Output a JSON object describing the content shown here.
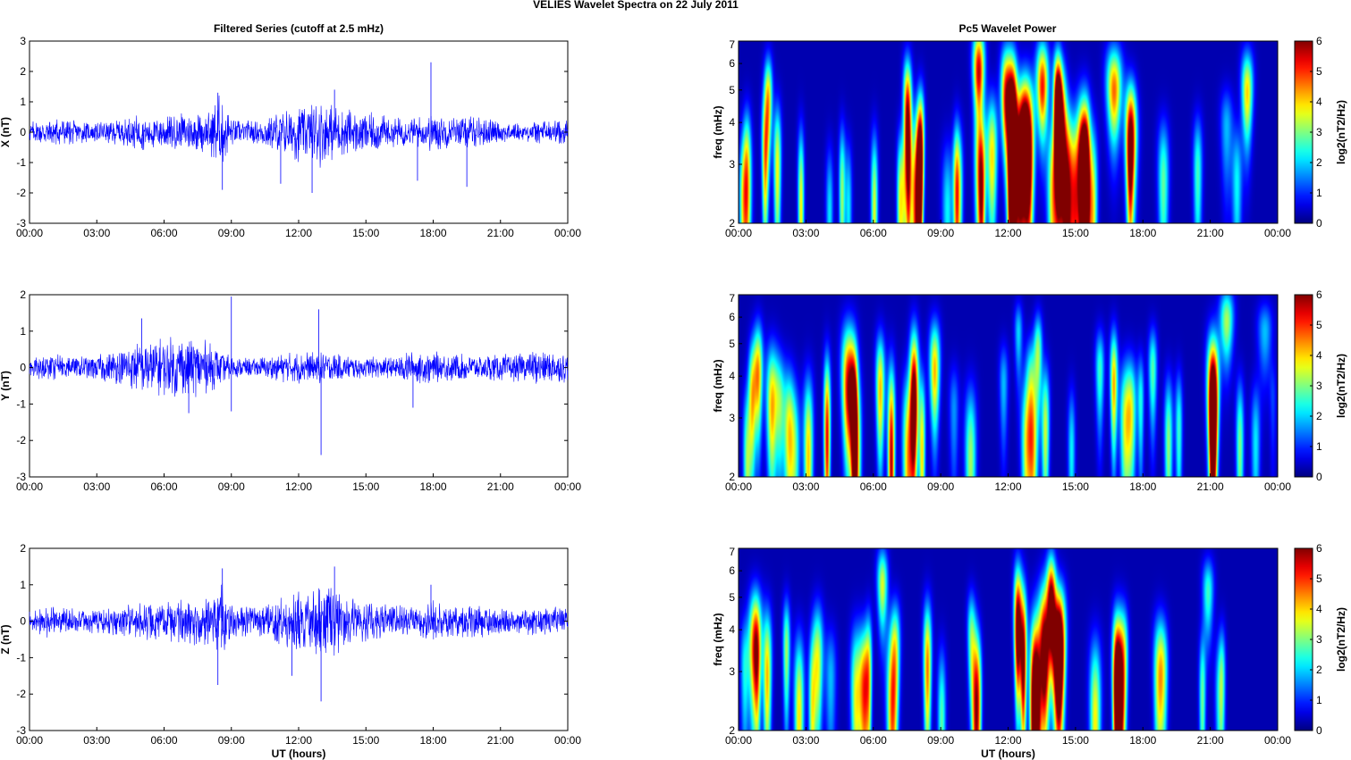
{
  "figure": {
    "title": "VELIES Wavelet Spectra on 22 July     2011",
    "time_left_title": "Filtered Series (cutoff at 2.5 mHz)",
    "spectra_title": "Pc5 Wavelet Power",
    "xlabel": "UT (hours)",
    "freq_label": "freq (mHz)",
    "colorbar_label": "log2(nT2/Hz)"
  },
  "chart_data": [
    {
      "type": "line",
      "component": "X",
      "ylabel": "X (nT)",
      "xlim": [
        0,
        24
      ],
      "ylim": [
        -3,
        3
      ],
      "yticks": [
        "-3",
        "-2",
        "-1",
        "0",
        "1",
        "2",
        "3"
      ],
      "xticks": [
        "00:00",
        "03:00",
        "06:00",
        "09:00",
        "12:00",
        "15:00",
        "18:00",
        "21:00",
        "00:00"
      ],
      "color": "#0000ff",
      "envelope": {
        "t_hours": [
          0,
          1,
          2,
          3,
          4,
          5,
          6,
          7,
          8,
          8.5,
          9,
          10,
          11,
          12,
          12.5,
          13,
          13.5,
          14,
          15,
          16,
          17,
          18,
          19,
          20,
          21,
          22,
          23,
          24
        ],
        "amplitude_nT": [
          0.35,
          0.55,
          0.4,
          0.35,
          0.45,
          0.6,
          0.55,
          0.65,
          0.7,
          1.4,
          0.45,
          0.4,
          0.7,
          1.0,
          0.9,
          1.2,
          1.0,
          0.8,
          0.7,
          0.55,
          0.45,
          0.7,
          0.5,
          0.55,
          0.35,
          0.3,
          0.45,
          0.4
        ]
      },
      "peaks": [
        {
          "t": 8.4,
          "nT": 1.3
        },
        {
          "t": 8.6,
          "nT": -1.9
        },
        {
          "t": 11.2,
          "nT": -1.7
        },
        {
          "t": 12.6,
          "nT": -2.0
        },
        {
          "t": 13.6,
          "nT": 1.4
        },
        {
          "t": 17.3,
          "nT": -1.6
        },
        {
          "t": 17.9,
          "nT": 2.3
        },
        {
          "t": 19.5,
          "nT": -1.8
        }
      ]
    },
    {
      "type": "line",
      "component": "Y",
      "ylabel": "Y (nT)",
      "xlim": [
        0,
        24
      ],
      "ylim": [
        -3,
        2
      ],
      "yticks": [
        "-3",
        "-2",
        "-1",
        "0",
        "1",
        "2"
      ],
      "xticks": [
        "00:00",
        "03:00",
        "06:00",
        "09:00",
        "12:00",
        "15:00",
        "18:00",
        "21:00",
        "00:00"
      ],
      "color": "#0000ff",
      "envelope": {
        "t_hours": [
          0,
          1,
          2,
          3,
          4,
          5,
          6,
          7,
          8,
          9,
          10,
          11,
          12,
          13,
          14,
          15,
          16,
          17,
          18,
          19,
          20,
          21,
          22,
          23,
          24
        ],
        "amplitude_nT": [
          0.25,
          0.4,
          0.3,
          0.35,
          0.5,
          0.75,
          0.85,
          0.9,
          0.75,
          0.3,
          0.25,
          0.4,
          0.45,
          0.45,
          0.35,
          0.3,
          0.3,
          0.45,
          0.45,
          0.4,
          0.35,
          0.4,
          0.4,
          0.55,
          0.4
        ]
      },
      "peaks": [
        {
          "t": 5.0,
          "nT": 1.35
        },
        {
          "t": 7.1,
          "nT": -1.25
        },
        {
          "t": 9.0,
          "nT": 1.95
        },
        {
          "t": 9.0,
          "nT": -1.2
        },
        {
          "t": 12.9,
          "nT": 1.6
        },
        {
          "t": 13.0,
          "nT": -2.4
        },
        {
          "t": 17.1,
          "nT": -1.1
        }
      ]
    },
    {
      "type": "line",
      "component": "Z",
      "ylabel": "Z (nT)",
      "xlim": [
        0,
        24
      ],
      "ylim": [
        -3,
        2
      ],
      "yticks": [
        "-3",
        "-2",
        "-1",
        "0",
        "1",
        "2"
      ],
      "xticks": [
        "00:00",
        "03:00",
        "06:00",
        "09:00",
        "12:00",
        "15:00",
        "18:00",
        "21:00",
        "00:00"
      ],
      "color": "#0000ff",
      "envelope": {
        "t_hours": [
          0,
          1,
          2,
          3,
          4,
          5,
          6,
          7,
          8,
          8.5,
          9,
          10,
          11,
          12,
          12.5,
          13,
          13.5,
          14,
          15,
          16,
          17,
          18,
          19,
          20,
          21,
          22,
          23,
          24
        ],
        "amplitude_nT": [
          0.3,
          0.5,
          0.35,
          0.35,
          0.45,
          0.55,
          0.55,
          0.65,
          0.7,
          1.3,
          0.5,
          0.4,
          0.6,
          0.9,
          0.8,
          1.1,
          1.0,
          0.8,
          0.6,
          0.5,
          0.4,
          0.6,
          0.45,
          0.5,
          0.35,
          0.35,
          0.45,
          0.4
        ]
      },
      "peaks": [
        {
          "t": 8.6,
          "nT": 1.45
        },
        {
          "t": 8.4,
          "nT": -1.75
        },
        {
          "t": 13.0,
          "nT": -2.2
        },
        {
          "t": 13.6,
          "nT": 1.5
        },
        {
          "t": 17.9,
          "nT": 1.0
        },
        {
          "t": 11.7,
          "nT": -1.5
        }
      ]
    },
    {
      "type": "heatmap",
      "component": "X",
      "xlim": [
        0,
        24
      ],
      "ylim_mHz": [
        2,
        7
      ],
      "yscale": "log",
      "yticks": [
        "2",
        "3",
        "4",
        "5",
        "6",
        "7"
      ],
      "xticks": [
        "00:00",
        "03:00",
        "06:00",
        "09:00",
        "12:00",
        "15:00",
        "18:00",
        "21:00",
        "00:00"
      ],
      "clim": [
        0,
        6
      ],
      "cticks": [
        "0",
        "1",
        "2",
        "3",
        "4",
        "5",
        "6"
      ],
      "colormap": "jet",
      "activity": {
        "t_hours": [
          0,
          1,
          2,
          3,
          4,
          5,
          6,
          7,
          8,
          8.5,
          9,
          10,
          11,
          12,
          13,
          14,
          15,
          16,
          17,
          18,
          19,
          20,
          21,
          22,
          22.5,
          23,
          24
        ],
        "intensity": [
          0.25,
          0.7,
          0.45,
          0.75,
          0.35,
          0.55,
          0.75,
          0.7,
          0.85,
          1.0,
          0.5,
          0.6,
          0.9,
          0.95,
          1.0,
          0.9,
          0.85,
          0.8,
          0.7,
          0.65,
          0.5,
          0.55,
          0.7,
          0.35,
          0.75,
          0.3,
          0.25
        ]
      }
    },
    {
      "type": "heatmap",
      "component": "Y",
      "xlim": [
        0,
        24
      ],
      "ylim_mHz": [
        2,
        7
      ],
      "yscale": "log",
      "yticks": [
        "2",
        "3",
        "4",
        "5",
        "6",
        "7"
      ],
      "xticks": [
        "00:00",
        "03:00",
        "06:00",
        "09:00",
        "12:00",
        "15:00",
        "18:00",
        "21:00",
        "00:00"
      ],
      "clim": [
        0,
        6
      ],
      "cticks": [
        "0",
        "1",
        "2",
        "3",
        "4",
        "5",
        "6"
      ],
      "colormap": "jet",
      "activity": {
        "t_hours": [
          0,
          1,
          2,
          3,
          4,
          5,
          6,
          7,
          8,
          8.7,
          9,
          10,
          11,
          12,
          13,
          14,
          15,
          16,
          17,
          18,
          19,
          20,
          21,
          22,
          23,
          24
        ],
        "intensity": [
          0.3,
          0.8,
          0.4,
          0.7,
          0.8,
          0.9,
          0.95,
          1.0,
          0.9,
          0.85,
          0.2,
          0.4,
          0.55,
          0.35,
          0.5,
          0.45,
          0.3,
          0.45,
          0.7,
          0.45,
          0.4,
          0.5,
          0.85,
          0.75,
          0.3,
          0.2
        ]
      }
    },
    {
      "type": "heatmap",
      "component": "Z",
      "xlim": [
        0,
        24
      ],
      "ylim_mHz": [
        2,
        7
      ],
      "yscale": "log",
      "yticks": [
        "2",
        "3",
        "4",
        "5",
        "6",
        "7"
      ],
      "xticks": [
        "00:00",
        "03:00",
        "06:00",
        "09:00",
        "12:00",
        "15:00",
        "18:00",
        "21:00",
        "00:00"
      ],
      "clim": [
        0,
        6
      ],
      "cticks": [
        "0",
        "1",
        "2",
        "3",
        "4",
        "5",
        "6"
      ],
      "colormap": "jet",
      "activity": {
        "t_hours": [
          0,
          1,
          2,
          3,
          4,
          5,
          6,
          7,
          8,
          8.5,
          9,
          10,
          11,
          12,
          13,
          14,
          15,
          16,
          17,
          18,
          19,
          20,
          21,
          22,
          22.5,
          23,
          24
        ],
        "intensity": [
          0.25,
          0.7,
          0.45,
          0.75,
          0.35,
          0.55,
          0.75,
          0.7,
          0.85,
          1.0,
          0.5,
          0.55,
          0.85,
          0.95,
          1.0,
          0.9,
          0.85,
          0.75,
          0.6,
          0.6,
          0.5,
          0.5,
          0.65,
          0.3,
          0.75,
          0.3,
          0.25
        ]
      }
    }
  ]
}
